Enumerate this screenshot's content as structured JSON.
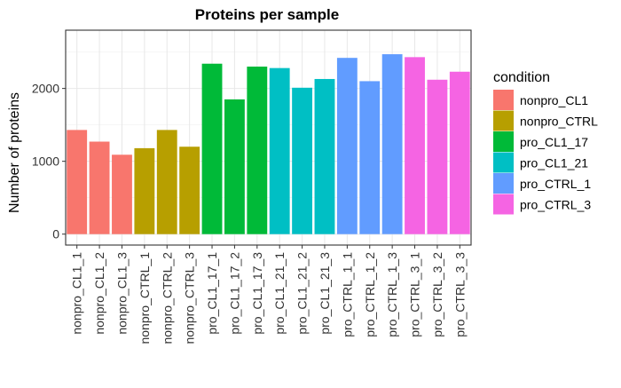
{
  "chart_data": {
    "type": "bar",
    "title": "Proteins per sample",
    "xlabel": "",
    "ylabel": "Number of proteins",
    "ylim": [
      -150,
      2800
    ],
    "yticks": [
      0,
      1000,
      2000
    ],
    "grid": true,
    "legend_position": "right",
    "legend_title": "condition",
    "conditions": [
      {
        "name": "nonpro_CL1",
        "color": "#F8766D"
      },
      {
        "name": "nonpro_CTRL",
        "color": "#B79F00"
      },
      {
        "name": "pro_CL1_17",
        "color": "#00BA38"
      },
      {
        "name": "pro_CL1_21",
        "color": "#00BFC4"
      },
      {
        "name": "pro_CTRL_1",
        "color": "#619CFF"
      },
      {
        "name": "pro_CTRL_3",
        "color": "#F564E3"
      }
    ],
    "categories": [
      "nonpro_CL1_1",
      "nonpro_CL1_2",
      "nonpro_CL1_3",
      "nonpro_CTRL_1",
      "nonpro_CTRL_2",
      "nonpro_CTRL_3",
      "pro_CL1_17_1",
      "pro_CL1_17_2",
      "pro_CL1_17_3",
      "pro_CL1_21_1",
      "pro_CL1_21_2",
      "pro_CL1_21_3",
      "pro_CTRL_1_1",
      "pro_CTRL_1_2",
      "pro_CTRL_1_3",
      "pro_CTRL_3_1",
      "pro_CTRL_3_2",
      "pro_CTRL_3_3"
    ],
    "values": [
      1430,
      1270,
      1090,
      1180,
      1430,
      1200,
      2340,
      1850,
      2300,
      2280,
      2010,
      2130,
      2420,
      2100,
      2470,
      2430,
      2120,
      2230
    ],
    "bar_condition": [
      0,
      0,
      0,
      1,
      1,
      1,
      2,
      2,
      2,
      3,
      3,
      3,
      4,
      4,
      4,
      5,
      5,
      5
    ]
  }
}
